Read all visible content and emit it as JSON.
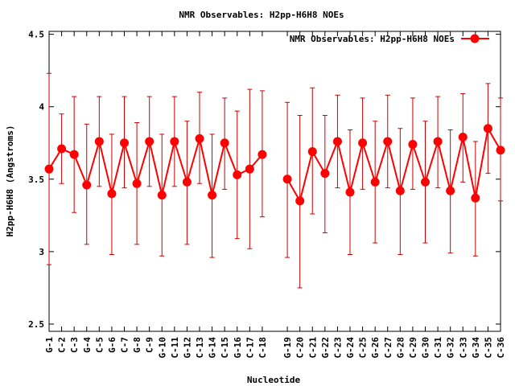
{
  "chart_data": {
    "type": "line",
    "title": "NMR Observables: H2pp-H6H8 NOEs",
    "xlabel": "Nucleotide",
    "ylabel": "H2pp-H6H8 (Angstroms)",
    "ylim": [
      2.45,
      4.52
    ],
    "yticks": [
      2.5,
      3,
      3.5,
      4,
      4.5
    ],
    "grid": false,
    "legend_position": "top-right",
    "series": [
      {
        "name": "NMR Observables: H2pp-H6H8 NOEs",
        "color": "#ff0000",
        "marker": "circle",
        "x": [
          1,
          2,
          3,
          4,
          5,
          6,
          7,
          8,
          9,
          10,
          11,
          12,
          13,
          14,
          15,
          16,
          17,
          18,
          20,
          21,
          22,
          23,
          24,
          25,
          26,
          27,
          28,
          29,
          30,
          31,
          32,
          33,
          34,
          35,
          36,
          37
        ],
        "categories": [
          "G-1",
          "C-2",
          "C-3",
          "G-4",
          "C-5",
          "G-6",
          "C-7",
          "G-8",
          "C-9",
          "G-10",
          "C-11",
          "G-12",
          "C-13",
          "G-14",
          "C-15",
          "G-16",
          "C-17",
          "C-18",
          "G-19",
          "C-20",
          "C-21",
          "G-22",
          "C-23",
          "G-24",
          "C-25",
          "G-26",
          "C-27",
          "G-28",
          "C-29",
          "G-30",
          "C-31",
          "G-32",
          "C-33",
          "G-34",
          "C-35",
          "C-36"
        ],
        "values": [
          3.57,
          3.71,
          3.67,
          3.46,
          3.76,
          3.4,
          3.75,
          3.47,
          3.76,
          3.39,
          3.76,
          3.48,
          3.78,
          3.39,
          3.75,
          3.53,
          3.57,
          3.67,
          3.5,
          3.35,
          3.69,
          3.54,
          3.76,
          3.41,
          3.75,
          3.48,
          3.76,
          3.42,
          3.74,
          3.48,
          3.76,
          3.42,
          3.79,
          3.37,
          3.85,
          3.7
        ],
        "error_low": [
          2.91,
          3.47,
          3.27,
          3.05,
          3.45,
          2.98,
          3.44,
          3.05,
          3.45,
          2.97,
          3.45,
          3.05,
          3.47,
          2.96,
          3.43,
          3.09,
          3.02,
          3.24,
          2.96,
          2.75,
          3.26,
          3.13,
          3.44,
          2.98,
          3.43,
          3.06,
          3.44,
          2.98,
          3.43,
          3.06,
          3.44,
          2.99,
          3.48,
          2.97,
          3.54,
          3.35
        ],
        "error_high": [
          4.23,
          3.95,
          4.07,
          3.88,
          4.07,
          3.81,
          4.07,
          3.89,
          4.07,
          3.81,
          4.07,
          3.9,
          4.1,
          3.81,
          4.06,
          3.97,
          4.12,
          4.11,
          4.03,
          3.94,
          4.13,
          3.94,
          4.08,
          3.84,
          4.06,
          3.9,
          4.08,
          3.85,
          4.06,
          3.9,
          4.07,
          3.84,
          4.09,
          3.76,
          4.16,
          4.06
        ],
        "segments": [
          [
            0,
            17
          ],
          [
            18,
            35
          ]
        ]
      }
    ]
  }
}
